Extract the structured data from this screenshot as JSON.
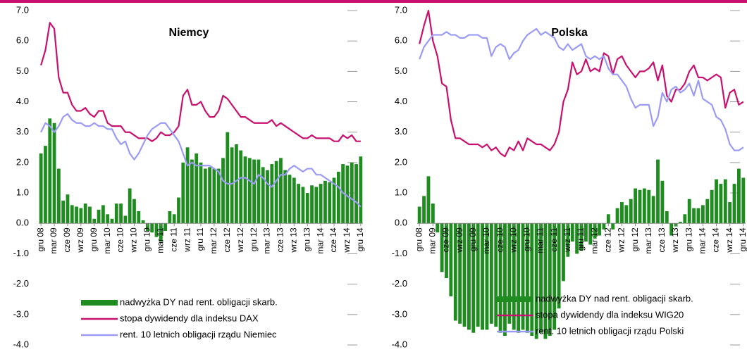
{
  "chart_data": [
    {
      "type": "bar-line",
      "title": "Niemcy",
      "categories": [
        "gru 08",
        null,
        null,
        "mar 09",
        null,
        null,
        "cze 09",
        null,
        null,
        "wrz 09",
        null,
        null,
        "gru 09",
        null,
        null,
        "mar 10",
        null,
        null,
        "cze 10",
        null,
        null,
        "wrz 10",
        null,
        null,
        "gru 10",
        null,
        null,
        "mar 11",
        null,
        null,
        "cze 11",
        null,
        null,
        "wrz 11",
        null,
        null,
        "gru 11",
        null,
        null,
        "mar 12",
        null,
        null,
        "cze 12",
        null,
        null,
        "wrz 12",
        null,
        null,
        "gru 12",
        null,
        null,
        "mar 13",
        null,
        null,
        "cze 13",
        null,
        null,
        "wrz 13",
        null,
        null,
        "gru 13",
        null,
        null,
        "mar 14",
        null,
        null,
        "cze 14",
        null,
        null,
        "wrz 14",
        null,
        null,
        "gru 14"
      ],
      "ylim": [
        -4,
        7
      ],
      "yticks": [
        {
          "value": 7,
          "label": "7.0"
        },
        {
          "value": 6,
          "label": "6.0"
        },
        {
          "value": 5,
          "label": "5.0"
        },
        {
          "value": 4,
          "label": "4.0"
        },
        {
          "value": 3,
          "label": "3.0"
        },
        {
          "value": 2,
          "label": "2.0"
        },
        {
          "value": 1,
          "label": "1.0"
        },
        {
          "value": 0,
          "label": "0.0"
        },
        {
          "value": -1,
          "label": "-1.0"
        },
        {
          "value": -2,
          "label": "-2.0"
        },
        {
          "value": -3,
          "label": "-3.0"
        },
        {
          "value": -4,
          "label": "-4.0"
        }
      ],
      "series": [
        {
          "name": "nadwyżka DY nad rent. obligacji skarb.",
          "kind": "bar",
          "color": "#1e8c1e",
          "values": [
            2.3,
            2.55,
            3.45,
            3.3,
            1.8,
            0.75,
            0.95,
            0.6,
            0.55,
            0.5,
            0.65,
            0.55,
            0.15,
            0.45,
            0.6,
            0.3,
            0.15,
            0.65,
            0.65,
            0.25,
            1.15,
            0.8,
            0.4,
            0.1,
            -0.25,
            -0.3,
            -0.45,
            -0.6,
            -0.25,
            0.4,
            0.3,
            0.85,
            2.0,
            2.5,
            2.1,
            2.3,
            2.0,
            1.8,
            1.85,
            1.8,
            1.8,
            2.15,
            3.0,
            2.5,
            2.6,
            2.4,
            2.2,
            2.15,
            2.1,
            2.1,
            1.85,
            1.75,
            1.95,
            2.05,
            2.15,
            1.75,
            1.6,
            1.5,
            1.3,
            1.2,
            1.0,
            1.25,
            1.2,
            1.3,
            1.4,
            1.35,
            1.5,
            1.7,
            1.95,
            1.9,
            2.0,
            1.95,
            2.2
          ]
        },
        {
          "name": "stopa dywidendy dla indeksu DAX",
          "kind": "line",
          "color": "#c8106e",
          "values": [
            5.2,
            5.7,
            6.6,
            6.4,
            4.8,
            4.3,
            4.3,
            3.9,
            3.7,
            3.7,
            3.8,
            3.6,
            3.5,
            3.7,
            3.7,
            3.3,
            3.2,
            3.2,
            3.2,
            3.0,
            3.0,
            2.9,
            2.8,
            2.8,
            2.8,
            2.7,
            2.8,
            3.0,
            2.9,
            2.9,
            3.0,
            3.2,
            4.2,
            4.4,
            3.9,
            3.9,
            4.0,
            3.7,
            3.5,
            3.5,
            3.7,
            4.2,
            4.1,
            3.9,
            3.7,
            3.5,
            3.5,
            3.4,
            3.3,
            3.3,
            3.3,
            3.3,
            3.4,
            3.2,
            3.3,
            3.2,
            3.1,
            3.0,
            2.9,
            2.8,
            2.8,
            2.9,
            2.8,
            2.8,
            2.8,
            2.8,
            2.7,
            2.7,
            2.9,
            2.8,
            2.9,
            2.7,
            2.7
          ]
        },
        {
          "name": "rent. 10 letnich obligacji rządu Niemiec",
          "kind": "line",
          "color": "#9b9bf5",
          "values": [
            3.0,
            3.3,
            3.2,
            3.0,
            3.2,
            3.5,
            3.6,
            3.4,
            3.3,
            3.3,
            3.2,
            3.2,
            3.3,
            3.2,
            3.2,
            3.1,
            3.1,
            2.8,
            2.6,
            2.7,
            2.3,
            2.1,
            2.3,
            2.6,
            2.9,
            3.1,
            3.2,
            3.3,
            3.3,
            3.1,
            2.9,
            2.7,
            2.3,
            1.9,
            2.0,
            1.9,
            1.9,
            1.9,
            1.9,
            1.8,
            1.7,
            1.4,
            1.3,
            1.3,
            1.4,
            1.5,
            1.5,
            1.4,
            1.3,
            1.6,
            1.5,
            1.3,
            1.2,
            1.4,
            1.6,
            1.6,
            1.8,
            1.9,
            1.8,
            1.7,
            1.8,
            1.8,
            1.6,
            1.6,
            1.5,
            1.4,
            1.3,
            1.2,
            1.0,
            0.9,
            0.8,
            0.7,
            0.55
          ]
        }
      ]
    },
    {
      "type": "bar-line",
      "title": "Polska",
      "categories": [
        "gru 08",
        null,
        null,
        "mar 09",
        null,
        null,
        "cze 09",
        null,
        null,
        "wrz 09",
        null,
        null,
        "gru 09",
        null,
        null,
        "mar 10",
        null,
        null,
        "cze 10",
        null,
        null,
        "wrz 10",
        null,
        null,
        "gru 10",
        null,
        null,
        "mar 11",
        null,
        null,
        "cze 11",
        null,
        null,
        "wrz 11",
        null,
        null,
        "gru 11",
        null,
        null,
        "mar 12",
        null,
        null,
        "cze 12",
        null,
        null,
        "wrz 12",
        null,
        null,
        "gru 12",
        null,
        null,
        "mar 13",
        null,
        null,
        "cze 13",
        null,
        null,
        "wrz 13",
        null,
        null,
        "gru 13",
        null,
        null,
        "mar 14",
        null,
        null,
        "cze 14",
        null,
        null,
        "wrz 14",
        null,
        null,
        "gru 14"
      ],
      "ylim": [
        -4,
        7
      ],
      "yticks": [
        {
          "value": 7,
          "label": "7.0"
        },
        {
          "value": 6,
          "label": "6.0"
        },
        {
          "value": 5,
          "label": "5.0"
        },
        {
          "value": 4,
          "label": "4.0"
        },
        {
          "value": 3,
          "label": "3.0"
        },
        {
          "value": 2,
          "label": "2.0"
        },
        {
          "value": 1,
          "label": "1.0"
        },
        {
          "value": 0,
          "label": "0.0"
        },
        {
          "value": -1,
          "label": "-1.0"
        },
        {
          "value": -2,
          "label": "-2.0"
        },
        {
          "value": -3,
          "label": "-3.0"
        },
        {
          "value": -4,
          "label": "-4.0"
        }
      ],
      "series": [
        {
          "name": "nadwyżka DY nad rent. obligacji skarb.",
          "kind": "bar",
          "color": "#1e8c1e",
          "values": [
            0.55,
            0.9,
            1.55,
            0.65,
            -0.3,
            -1.6,
            -1.8,
            -2.4,
            -3.2,
            -3.3,
            -3.4,
            -3.5,
            -3.6,
            -3.4,
            -3.5,
            -3.5,
            -3.3,
            -3.4,
            -3.6,
            -3.7,
            -3.3,
            -3.5,
            -3.6,
            -3.5,
            -3.6,
            -3.7,
            -3.8,
            -3.6,
            -3.8,
            -3.7,
            -3.5,
            -2.8,
            -1.9,
            -1.1,
            -0.6,
            -1.0,
            -0.9,
            -0.6,
            -0.7,
            -0.5,
            -0.4,
            -0.2,
            0.3,
            -0.2,
            0.5,
            0.7,
            0.6,
            0.8,
            1.15,
            1.1,
            1.15,
            1.1,
            0.9,
            2.1,
            1.4,
            0.4,
            -0.4,
            -0.1,
            0.05,
            0.3,
            0.8,
            0.5,
            0.5,
            0.6,
            0.8,
            1.1,
            1.45,
            1.3,
            1.45,
            0.7,
            1.3,
            1.8,
            1.5
          ]
        },
        {
          "name": "stopa dywidendy dla indeksu WIG20",
          "kind": "line",
          "color": "#c8106e",
          "values": [
            5.9,
            6.5,
            7.0,
            6.0,
            5.5,
            4.6,
            4.5,
            3.4,
            2.8,
            2.8,
            2.7,
            2.6,
            2.6,
            2.6,
            2.5,
            2.6,
            2.4,
            2.5,
            2.3,
            2.2,
            2.5,
            2.4,
            2.7,
            2.4,
            2.8,
            2.7,
            2.6,
            2.6,
            2.5,
            2.4,
            2.6,
            3.0,
            4.0,
            4.4,
            5.3,
            4.9,
            5.0,
            5.4,
            5.0,
            5.1,
            5.0,
            5.6,
            5.5,
            4.9,
            5.4,
            5.5,
            5.2,
            5.0,
            4.8,
            5.0,
            5.0,
            5.1,
            5.3,
            4.7,
            5.2,
            4.2,
            4.0,
            4.4,
            4.4,
            4.6,
            5.0,
            5.2,
            4.8,
            4.8,
            4.7,
            4.8,
            4.9,
            4.8,
            3.8,
            4.3,
            4.4,
            3.9,
            4.0
          ]
        },
        {
          "name": "rent. 10 letnich obligacji rządu Polski",
          "kind": "line",
          "color": "#9b9bf5",
          "values": [
            5.4,
            5.8,
            6.0,
            6.2,
            6.2,
            6.2,
            6.3,
            6.2,
            6.2,
            6.1,
            6.1,
            6.2,
            6.2,
            6.2,
            6.1,
            6.1,
            5.5,
            5.8,
            5.9,
            5.8,
            5.4,
            5.6,
            5.7,
            6.0,
            6.2,
            6.3,
            6.4,
            6.2,
            6.3,
            6.2,
            6.1,
            5.8,
            5.7,
            5.9,
            5.7,
            5.8,
            5.9,
            5.5,
            5.4,
            5.5,
            5.4,
            5.5,
            5.1,
            4.9,
            4.9,
            4.7,
            4.5,
            4.1,
            3.8,
            3.9,
            3.9,
            3.9,
            3.2,
            3.5,
            4.3,
            4.0,
            4.4,
            4.5,
            4.3,
            4.4,
            4.6,
            4.2,
            4.7,
            4.1,
            4.0,
            3.9,
            3.5,
            3.4,
            3.1,
            2.6,
            2.4,
            2.4,
            2.5
          ]
        }
      ]
    }
  ]
}
